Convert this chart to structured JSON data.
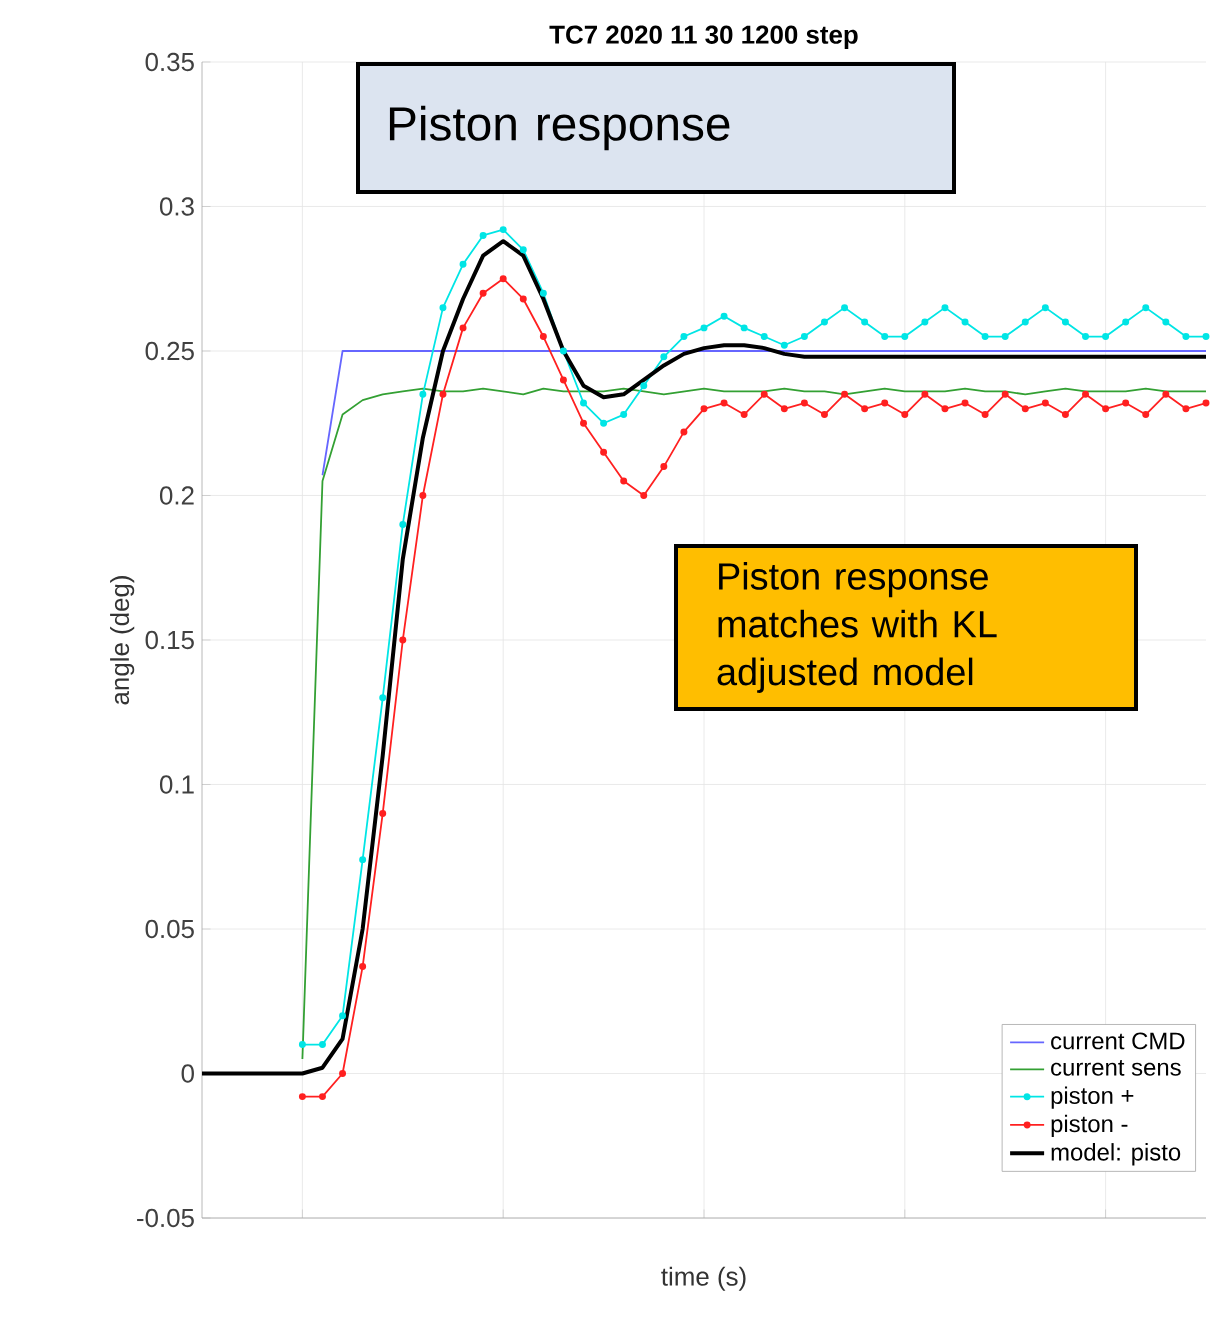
{
  "chart_data": {
    "type": "line",
    "title": "TC7 2020 11 30 1200 step",
    "xlabel": "time (s)",
    "ylabel": "angle (deg)",
    "annotations": [
      "Piston response",
      "Piston response matches with KL adjusted model"
    ],
    "categories": [
      null,
      null,
      null,
      null,
      null,
      null,
      null,
      null,
      null,
      null,
      null,
      null,
      null,
      null,
      null,
      null,
      null,
      null,
      null,
      null,
      null,
      null,
      null,
      null,
      null,
      null,
      null,
      null,
      null,
      null,
      null,
      null,
      null,
      null,
      null,
      null,
      null,
      null,
      null,
      null,
      null,
      null,
      null,
      null,
      null,
      null,
      null,
      null,
      null,
      null,
      null
    ],
    "ylim": [
      -0.05,
      0.35
    ],
    "yticks": [
      -0.05,
      0,
      0.05,
      0.1,
      0.15,
      0.2,
      0.25,
      0.3,
      0.35
    ],
    "grid": true,
    "legend": "bottom right",
    "tick_labels": "y",
    "line_style": "solid",
    "series": [
      {
        "name": "current CMD",
        "color": "#6666ff",
        "marker": "none",
        "values": [
          null,
          null,
          null,
          null,
          null,
          null,
          0.207,
          0.25,
          0.25,
          0.25,
          0.25,
          0.25,
          0.25,
          0.25,
          0.25,
          0.25,
          0.25,
          0.25,
          0.25,
          0.25,
          0.25,
          0.25,
          0.25,
          0.25,
          0.25,
          0.25,
          0.25,
          0.25,
          0.25,
          0.25,
          0.25,
          0.25,
          0.25,
          0.25,
          0.25,
          0.25,
          0.25,
          0.25,
          0.25,
          0.25,
          0.25,
          0.25,
          0.25,
          0.25,
          0.25,
          0.25,
          0.25,
          0.25,
          0.25,
          0.25,
          0.25
        ]
      },
      {
        "name": "current sens",
        "color": "#33a033",
        "marker": "none",
        "values": [
          null,
          null,
          null,
          null,
          null,
          0.005,
          0.205,
          0.228,
          0.233,
          0.235,
          0.236,
          0.237,
          0.236,
          0.236,
          0.237,
          0.236,
          0.235,
          0.237,
          0.236,
          0.236,
          0.236,
          0.237,
          0.236,
          0.235,
          0.236,
          0.237,
          0.236,
          0.236,
          0.236,
          0.237,
          0.236,
          0.236,
          0.235,
          0.236,
          0.237,
          0.236,
          0.236,
          0.236,
          0.237,
          0.236,
          0.236,
          0.235,
          0.236,
          0.237,
          0.236,
          0.236,
          0.236,
          0.237,
          0.236,
          0.236,
          0.236
        ]
      },
      {
        "name": "piston +",
        "color": "#00e5e5",
        "marker": "circle",
        "values": [
          null,
          null,
          null,
          null,
          null,
          0.01,
          0.01,
          0.02,
          0.074,
          0.13,
          0.19,
          0.235,
          0.265,
          0.28,
          0.29,
          0.292,
          0.285,
          0.27,
          0.25,
          0.232,
          0.225,
          0.228,
          0.238,
          0.248,
          0.255,
          0.258,
          0.262,
          0.258,
          0.255,
          0.252,
          0.255,
          0.26,
          0.265,
          0.26,
          0.255,
          0.255,
          0.26,
          0.265,
          0.26,
          0.255,
          0.255,
          0.26,
          0.265,
          0.26,
          0.255,
          0.255,
          0.26,
          0.265,
          0.26,
          0.255,
          0.255
        ]
      },
      {
        "name": "piston -",
        "color": "#ff2020",
        "marker": "circle",
        "values": [
          null,
          null,
          null,
          null,
          null,
          -0.008,
          -0.008,
          0,
          0.037,
          0.09,
          0.15,
          0.2,
          0.235,
          0.258,
          0.27,
          0.275,
          0.268,
          0.255,
          0.24,
          0.225,
          0.215,
          0.205,
          0.2,
          0.21,
          0.222,
          0.23,
          0.232,
          0.228,
          0.235,
          0.23,
          0.232,
          0.228,
          0.235,
          0.23,
          0.232,
          0.228,
          0.235,
          0.23,
          0.232,
          0.228,
          0.235,
          0.23,
          0.232,
          0.228,
          0.235,
          0.23,
          0.232,
          0.228,
          0.235,
          0.23,
          0.232
        ]
      },
      {
        "name": "model: pisto",
        "color": "#000000",
        "marker": "none",
        "values": [
          0,
          0,
          0,
          0,
          0,
          0,
          0.002,
          0.012,
          0.05,
          0.11,
          0.178,
          0.22,
          0.25,
          0.268,
          0.283,
          0.288,
          0.283,
          0.268,
          0.25,
          0.238,
          0.234,
          0.235,
          0.24,
          0.245,
          0.249,
          0.251,
          0.252,
          0.252,
          0.251,
          0.249,
          0.248,
          0.248,
          0.248,
          0.248,
          0.248,
          0.248,
          0.248,
          0.248,
          0.248,
          0.248,
          0.248,
          0.248,
          0.248,
          0.248,
          0.248,
          0.248,
          0.248,
          0.248,
          0.248,
          0.248,
          0.248
        ]
      }
    ]
  }
}
